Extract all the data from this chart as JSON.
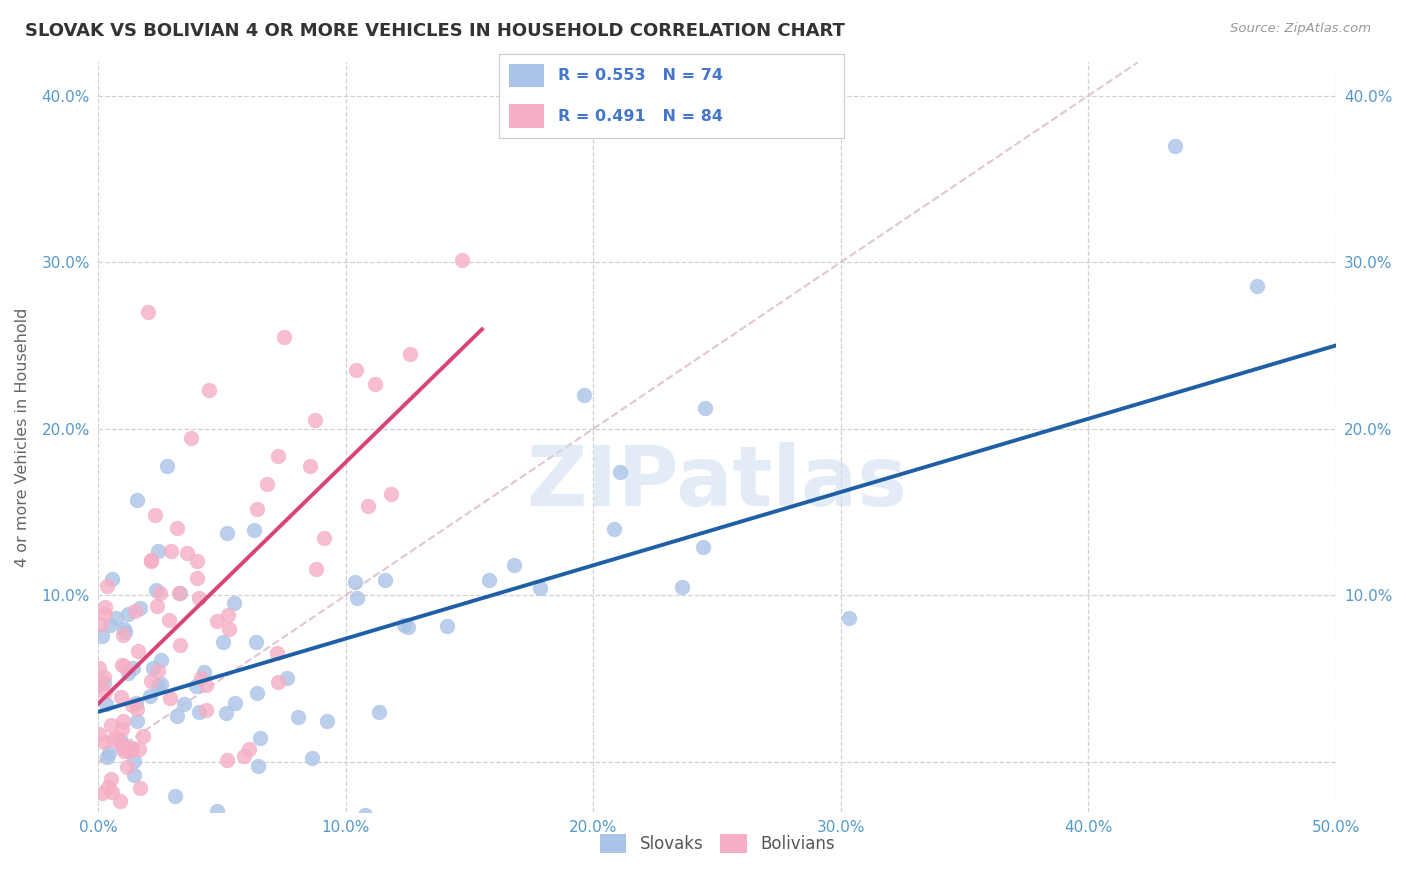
{
  "title": "SLOVAK VS BOLIVIAN 4 OR MORE VEHICLES IN HOUSEHOLD CORRELATION CHART",
  "source": "Source: ZipAtlas.com",
  "ylabel": "4 or more Vehicles in Household",
  "xlim": [
    0.0,
    0.5
  ],
  "ylim": [
    -0.03,
    0.42
  ],
  "xticks": [
    0.0,
    0.1,
    0.2,
    0.3,
    0.4,
    0.5
  ],
  "yticks": [
    0.0,
    0.1,
    0.2,
    0.3,
    0.4
  ],
  "ytick_labels_left": [
    "",
    "10.0%",
    "20.0%",
    "30.0%",
    "40.0%"
  ],
  "ytick_labels_right": [
    "",
    "10.0%",
    "20.0%",
    "30.0%",
    "40.0%"
  ],
  "xtick_labels": [
    "0.0%",
    "10.0%",
    "20.0%",
    "30.0%",
    "40.0%",
    "50.0%"
  ],
  "slovak_color": "#aac4e8",
  "bolivian_color": "#f5aec3",
  "slovak_line_color": "#1f5fa6",
  "bolivian_line_color": "#d94477",
  "diagonal_color": "#ddbbcc",
  "background_color": "#ffffff",
  "grid_color": "#cccccc",
  "title_color": "#333333",
  "axis_label_color": "#666666",
  "tick_label_color": "#5599cc",
  "legend_text_color": "#4477cc",
  "watermark": "ZIPatlas",
  "R_slovak": 0.553,
  "N_slovak": 74,
  "R_bolivian": 0.491,
  "N_bolivian": 84,
  "slovak_slope": 0.44,
  "slovak_intercept": 0.03,
  "bolivian_slope": 1.45,
  "bolivian_intercept": 0.035,
  "bolivian_line_xmax": 0.155
}
